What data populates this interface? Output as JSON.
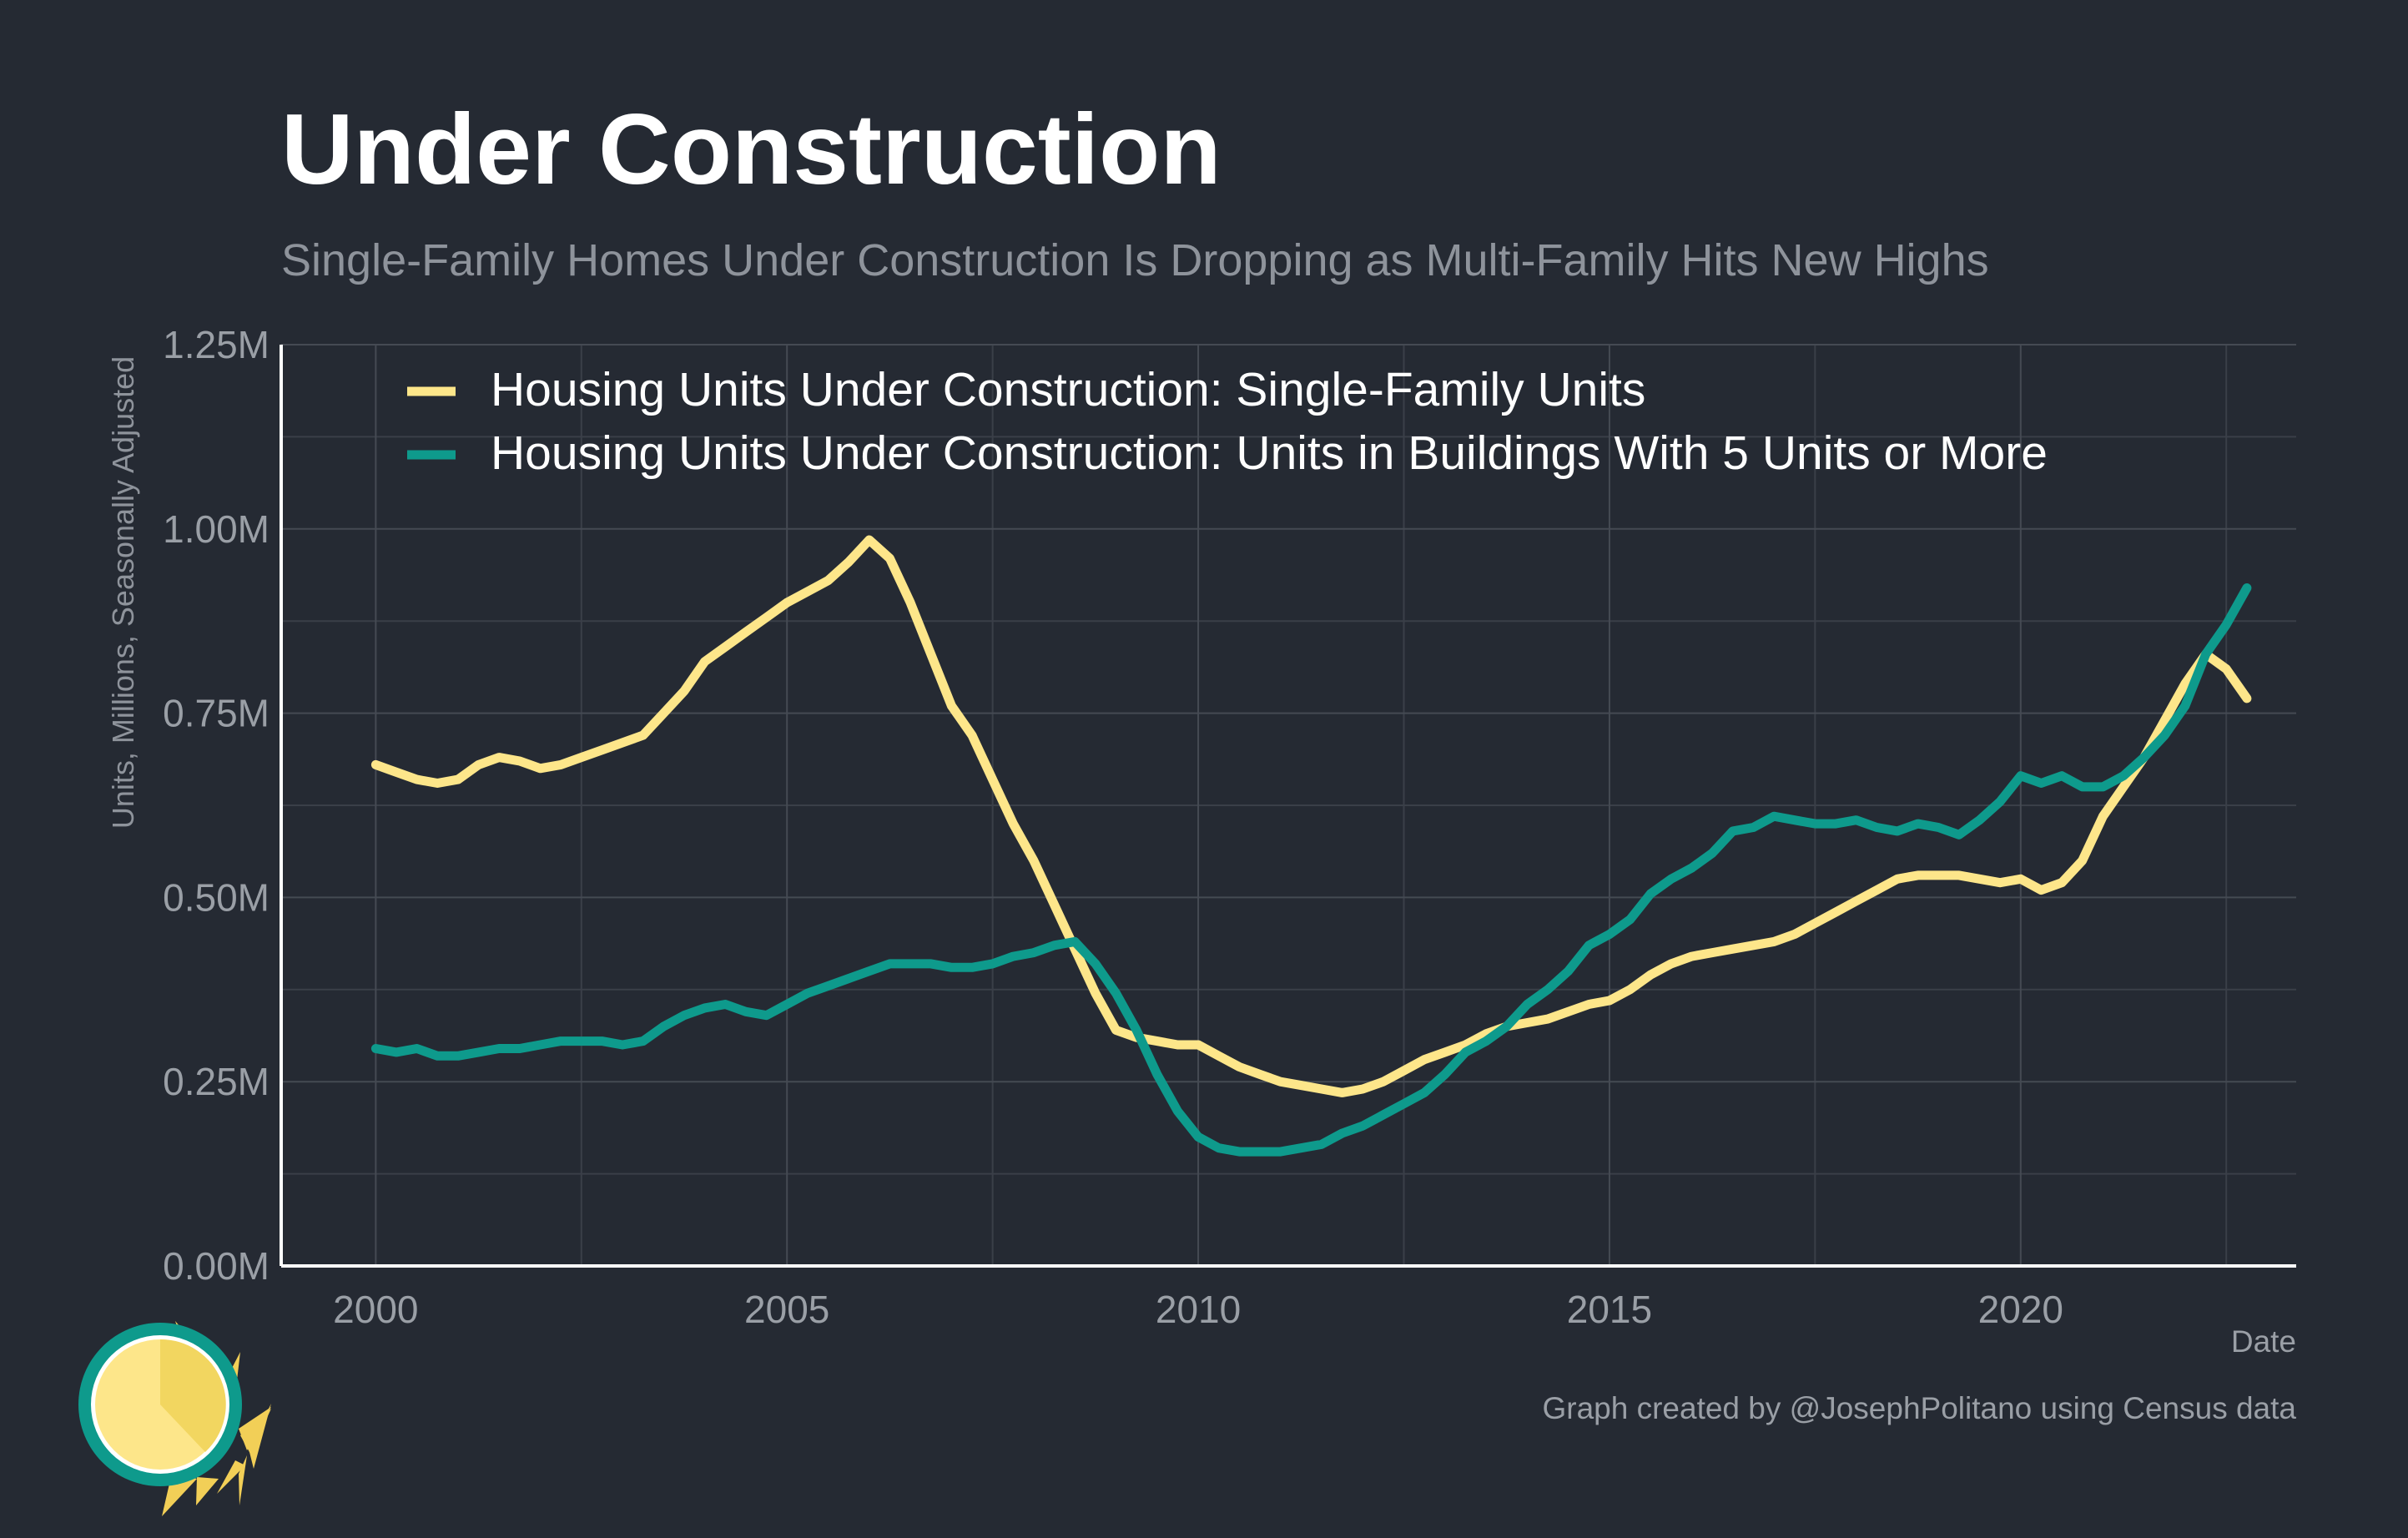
{
  "chart_data": {
    "type": "line",
    "title": "Under Construction",
    "subtitle": "Single-Family Homes Under Construction Is Dropping as Multi-Family Hits New Highs",
    "xlabel": "Date",
    "ylabel": "Units, Millions, Seasonally Adjusted",
    "caption": "Graph created by @JosephPolitano using Census data",
    "xlim": [
      1998.85,
      2023.35
    ],
    "ylim": [
      0,
      1.25
    ],
    "x_ticks": [
      2000,
      2005,
      2010,
      2015,
      2020
    ],
    "x_tick_labels": [
      "2000",
      "2005",
      "2010",
      "2015",
      "2020"
    ],
    "y_ticks": [
      0,
      0.25,
      0.5,
      0.75,
      1.0,
      1.25
    ],
    "y_tick_labels": [
      "0.00M",
      "0.25M",
      "0.50M",
      "0.75M",
      "1.00M",
      "1.25M"
    ],
    "grid": true,
    "legend_position": "top-left",
    "series": [
      {
        "name": "Housing Units Under Construction: Single-Family Units",
        "color": "#fde68a",
        "x": [
          2000.0,
          2000.25,
          2000.5,
          2000.75,
          2001.0,
          2001.25,
          2001.5,
          2001.75,
          2002.0,
          2002.25,
          2002.5,
          2002.75,
          2003.0,
          2003.25,
          2003.5,
          2003.75,
          2004.0,
          2004.25,
          2004.5,
          2004.75,
          2005.0,
          2005.25,
          2005.5,
          2005.75,
          2006.0,
          2006.25,
          2006.5,
          2006.75,
          2007.0,
          2007.25,
          2007.5,
          2007.75,
          2008.0,
          2008.25,
          2008.5,
          2008.75,
          2009.0,
          2009.25,
          2009.5,
          2009.75,
          2010.0,
          2010.25,
          2010.5,
          2010.75,
          2011.0,
          2011.25,
          2011.5,
          2011.75,
          2012.0,
          2012.25,
          2012.5,
          2012.75,
          2013.0,
          2013.25,
          2013.5,
          2013.75,
          2014.0,
          2014.25,
          2014.5,
          2014.75,
          2015.0,
          2015.25,
          2015.5,
          2015.75,
          2016.0,
          2016.25,
          2016.5,
          2016.75,
          2017.0,
          2017.25,
          2017.5,
          2017.75,
          2018.0,
          2018.25,
          2018.5,
          2018.75,
          2019.0,
          2019.25,
          2019.5,
          2019.75,
          2020.0,
          2020.25,
          2020.5,
          2020.75,
          2021.0,
          2021.25,
          2021.5,
          2021.75,
          2022.0,
          2022.25,
          2022.5,
          2022.75
        ],
        "values": [
          0.68,
          0.67,
          0.66,
          0.655,
          0.66,
          0.68,
          0.69,
          0.685,
          0.675,
          0.68,
          0.69,
          0.7,
          0.71,
          0.72,
          0.75,
          0.78,
          0.82,
          0.84,
          0.86,
          0.88,
          0.9,
          0.915,
          0.93,
          0.955,
          0.985,
          0.96,
          0.9,
          0.83,
          0.76,
          0.72,
          0.66,
          0.6,
          0.55,
          0.49,
          0.43,
          0.37,
          0.32,
          0.31,
          0.305,
          0.3,
          0.3,
          0.285,
          0.27,
          0.26,
          0.25,
          0.245,
          0.24,
          0.235,
          0.24,
          0.25,
          0.265,
          0.28,
          0.29,
          0.3,
          0.315,
          0.325,
          0.33,
          0.335,
          0.345,
          0.355,
          0.36,
          0.375,
          0.395,
          0.41,
          0.42,
          0.425,
          0.43,
          0.435,
          0.44,
          0.45,
          0.465,
          0.48,
          0.495,
          0.51,
          0.525,
          0.53,
          0.53,
          0.53,
          0.525,
          0.52,
          0.525,
          0.51,
          0.52,
          0.55,
          0.61,
          0.65,
          0.69,
          0.74,
          0.79,
          0.83,
          0.81,
          0.77
        ]
      },
      {
        "name": "Housing Units Under Construction: Units in Buildings With 5 Units or More",
        "color": "#0e9a8c",
        "x": [
          2000.0,
          2000.25,
          2000.5,
          2000.75,
          2001.0,
          2001.25,
          2001.5,
          2001.75,
          2002.0,
          2002.25,
          2002.5,
          2002.75,
          2003.0,
          2003.25,
          2003.5,
          2003.75,
          2004.0,
          2004.25,
          2004.5,
          2004.75,
          2005.0,
          2005.25,
          2005.5,
          2005.75,
          2006.0,
          2006.25,
          2006.5,
          2006.75,
          2007.0,
          2007.25,
          2007.5,
          2007.75,
          2008.0,
          2008.25,
          2008.5,
          2008.75,
          2009.0,
          2009.25,
          2009.5,
          2009.75,
          2010.0,
          2010.25,
          2010.5,
          2010.75,
          2011.0,
          2011.25,
          2011.5,
          2011.75,
          2012.0,
          2012.25,
          2012.5,
          2012.75,
          2013.0,
          2013.25,
          2013.5,
          2013.75,
          2014.0,
          2014.25,
          2014.5,
          2014.75,
          2015.0,
          2015.25,
          2015.5,
          2015.75,
          2016.0,
          2016.25,
          2016.5,
          2016.75,
          2017.0,
          2017.25,
          2017.5,
          2017.75,
          2018.0,
          2018.25,
          2018.5,
          2018.75,
          2019.0,
          2019.25,
          2019.5,
          2019.75,
          2020.0,
          2020.25,
          2020.5,
          2020.75,
          2021.0,
          2021.25,
          2021.5,
          2021.75,
          2022.0,
          2022.25,
          2022.5,
          2022.75
        ],
        "values": [
          0.295,
          0.29,
          0.295,
          0.285,
          0.285,
          0.29,
          0.295,
          0.295,
          0.3,
          0.305,
          0.305,
          0.305,
          0.3,
          0.305,
          0.325,
          0.34,
          0.35,
          0.355,
          0.345,
          0.34,
          0.355,
          0.37,
          0.38,
          0.39,
          0.4,
          0.41,
          0.41,
          0.41,
          0.405,
          0.405,
          0.41,
          0.42,
          0.425,
          0.435,
          0.44,
          0.41,
          0.37,
          0.32,
          0.26,
          0.21,
          0.175,
          0.16,
          0.155,
          0.155,
          0.155,
          0.16,
          0.165,
          0.18,
          0.19,
          0.205,
          0.22,
          0.235,
          0.26,
          0.29,
          0.305,
          0.325,
          0.355,
          0.375,
          0.4,
          0.435,
          0.45,
          0.47,
          0.505,
          0.525,
          0.54,
          0.56,
          0.59,
          0.595,
          0.61,
          0.605,
          0.6,
          0.6,
          0.605,
          0.595,
          0.59,
          0.6,
          0.595,
          0.585,
          0.605,
          0.63,
          0.665,
          0.655,
          0.665,
          0.65,
          0.65,
          0.665,
          0.69,
          0.72,
          0.76,
          0.83,
          0.87,
          0.92
        ]
      }
    ]
  }
}
